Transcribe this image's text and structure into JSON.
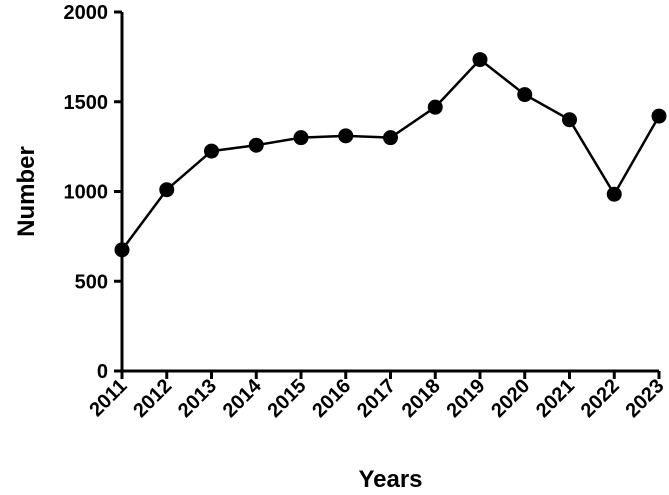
{
  "chart_data": {
    "type": "line",
    "title": "",
    "xlabel": "Years",
    "ylabel": "Number",
    "x": [
      "2011",
      "2012",
      "2013",
      "2014",
      "2015",
      "2016",
      "2017",
      "2018",
      "2019",
      "2020",
      "2021",
      "2022",
      "2023"
    ],
    "series": [
      {
        "values": [
          675,
          1010,
          1225,
          1258,
          1300,
          1310,
          1300,
          1470,
          1735,
          1540,
          1400,
          985,
          1420
        ]
      }
    ],
    "ylim": [
      0,
      2000
    ],
    "yticks": [
      "0",
      "500",
      "1000",
      "1500",
      "2000"
    ],
    "grid": false,
    "legend": "none",
    "colors": {
      "line": "#000000",
      "marker": "#000000",
      "axis": "#000000"
    }
  }
}
